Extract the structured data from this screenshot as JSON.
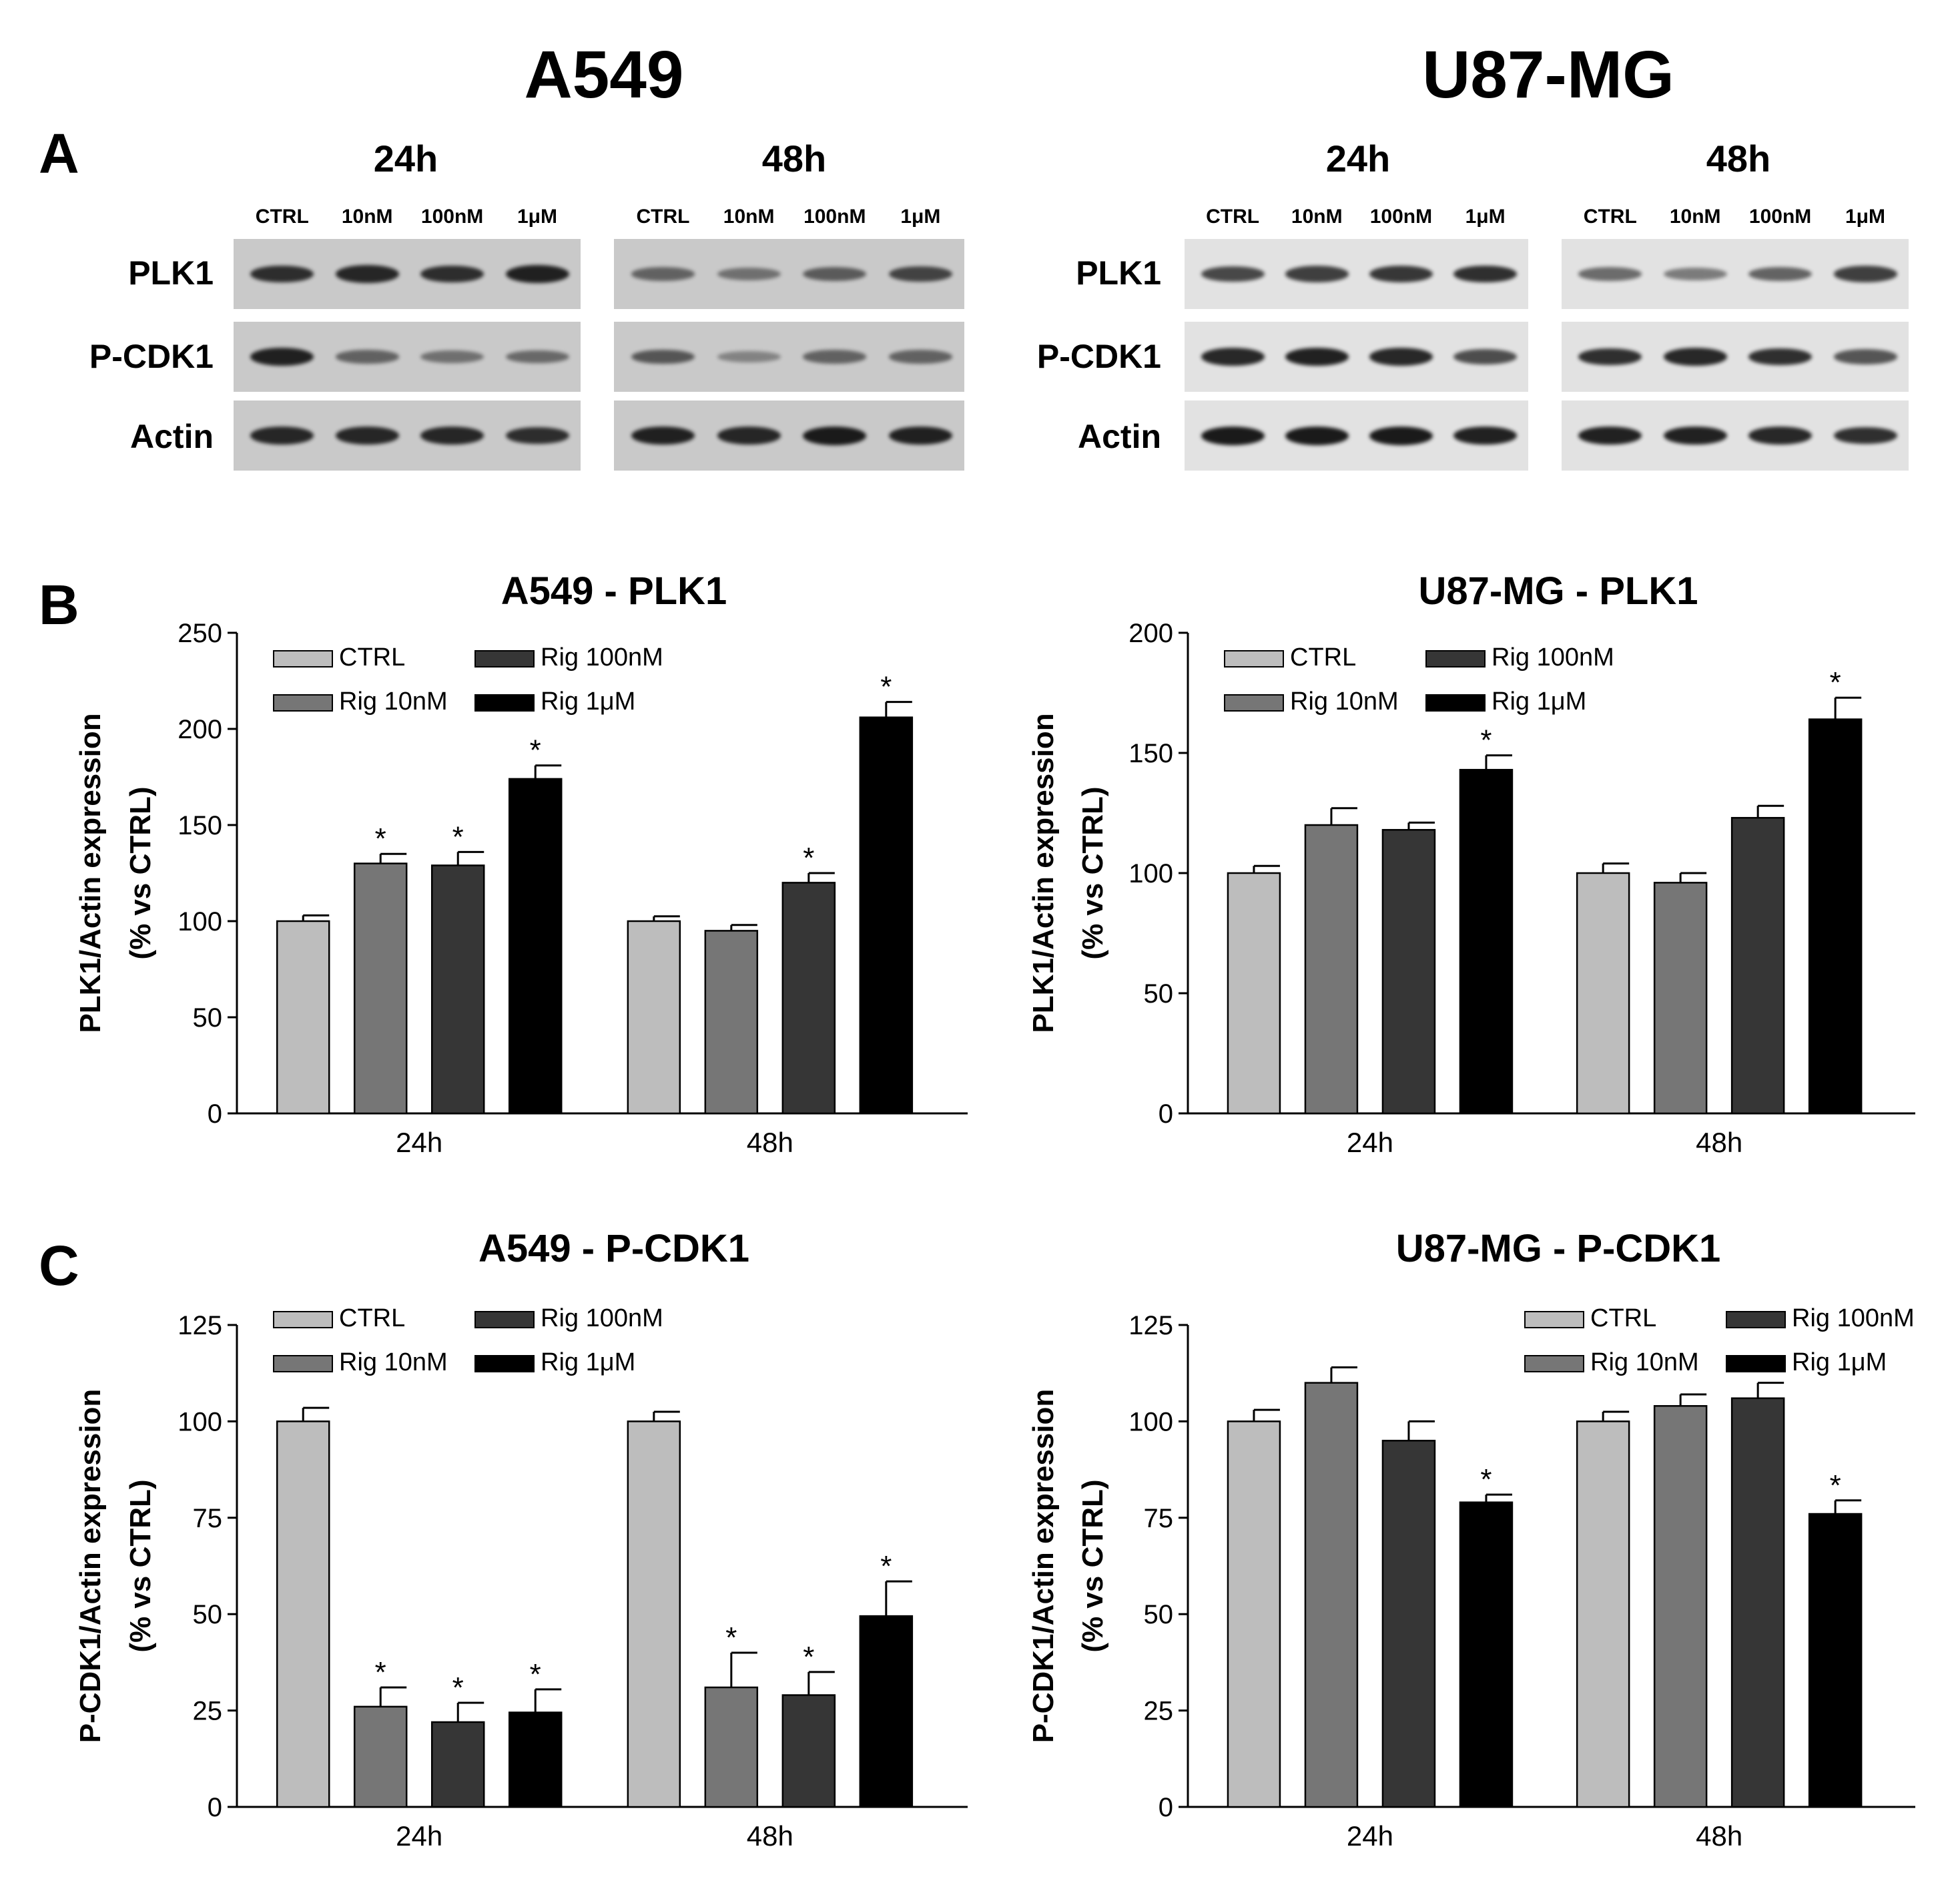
{
  "panel_letters": {
    "A": "A",
    "B": "B",
    "C": "C"
  },
  "cell_lines": [
    "A549",
    "U87-MG"
  ],
  "blots": {
    "time_labels": [
      "24h",
      "48h"
    ],
    "lane_labels": [
      "CTRL",
      "10nM",
      "100nM",
      "1μM"
    ],
    "row_labels": [
      "PLK1",
      "P-CDK1",
      "Actin"
    ]
  },
  "colors": {
    "CTRL": "#bdbdbd",
    "Rig 10nM": "#767676",
    "Rig 100nM": "#363636",
    "Rig 1μM": "#000000"
  },
  "chart_data": [
    {
      "type": "bar",
      "title": "A549 - PLK1",
      "ylabel_line1": "PLK1/Actin expression",
      "ylabel_line2": "(% vs CTRL)",
      "categories": [
        "24h",
        "48h"
      ],
      "ylim": [
        0,
        250
      ],
      "yticks": [
        "0",
        "50",
        "100",
        "150",
        "200",
        "250"
      ],
      "legend_position": "top-left",
      "series": [
        {
          "name": "CTRL",
          "values": [
            100,
            100
          ],
          "errors": [
            3,
            2.5
          ],
          "sig": [
            "",
            ""
          ]
        },
        {
          "name": "Rig 10nM",
          "values": [
            130,
            95
          ],
          "errors": [
            5,
            3
          ],
          "sig": [
            "*",
            ""
          ]
        },
        {
          "name": "Rig 100nM",
          "values": [
            129,
            120
          ],
          "errors": [
            7,
            5
          ],
          "sig": [
            "*",
            "*"
          ]
        },
        {
          "name": "Rig 1μM",
          "values": [
            174,
            206
          ],
          "errors": [
            7,
            8
          ],
          "sig": [
            "*",
            "*"
          ]
        }
      ]
    },
    {
      "type": "bar",
      "title": "U87-MG - PLK1",
      "ylabel_line1": "PLK1/Actin expression",
      "ylabel_line2": "(% vs CTRL)",
      "categories": [
        "24h",
        "48h"
      ],
      "ylim": [
        0,
        200
      ],
      "yticks": [
        "0",
        "50",
        "100",
        "150",
        "200"
      ],
      "legend_position": "top-left",
      "series": [
        {
          "name": "CTRL",
          "values": [
            100,
            100
          ],
          "errors": [
            3,
            4
          ],
          "sig": [
            "",
            ""
          ]
        },
        {
          "name": "Rig 10nM",
          "values": [
            120,
            96
          ],
          "errors": [
            7,
            4
          ],
          "sig": [
            "",
            ""
          ]
        },
        {
          "name": "Rig 100nM",
          "values": [
            118,
            123
          ],
          "errors": [
            3,
            5
          ],
          "sig": [
            "",
            ""
          ]
        },
        {
          "name": "Rig 1μM",
          "values": [
            143,
            164
          ],
          "errors": [
            6,
            9
          ],
          "sig": [
            "*",
            "*"
          ]
        }
      ]
    },
    {
      "type": "bar",
      "title": "A549 - P-CDK1",
      "ylabel_line1": "P-CDK1/Actin expression",
      "ylabel_line2": "(% vs CTRL)",
      "categories": [
        "24h",
        "48h"
      ],
      "ylim": [
        0,
        125
      ],
      "yticks": [
        "0",
        "25",
        "50",
        "75",
        "100",
        "125"
      ],
      "legend_position": "top-left",
      "series": [
        {
          "name": "CTRL",
          "values": [
            100,
            100
          ],
          "errors": [
            3.5,
            2.5
          ],
          "sig": [
            "",
            ""
          ]
        },
        {
          "name": "Rig 10nM",
          "values": [
            26,
            31
          ],
          "errors": [
            5,
            9
          ],
          "sig": [
            "*",
            "*"
          ]
        },
        {
          "name": "Rig 100nM",
          "values": [
            22,
            29
          ],
          "errors": [
            5,
            6
          ],
          "sig": [
            "*",
            "*"
          ]
        },
        {
          "name": "Rig 1μM",
          "values": [
            24.5,
            49.5
          ],
          "errors": [
            6,
            9
          ],
          "sig": [
            "*",
            "*"
          ]
        }
      ]
    },
    {
      "type": "bar",
      "title": "U87-MG - P-CDK1",
      "ylabel_line1": "P-CDK1/Actin expression",
      "ylabel_line2": "(% vs CTRL)",
      "categories": [
        "24h",
        "48h"
      ],
      "ylim": [
        0,
        125
      ],
      "yticks": [
        "0",
        "25",
        "50",
        "75",
        "100",
        "125"
      ],
      "legend_position": "top-right",
      "series": [
        {
          "name": "CTRL",
          "values": [
            100,
            100
          ],
          "errors": [
            3,
            2.5
          ],
          "sig": [
            "",
            ""
          ]
        },
        {
          "name": "Rig 10nM",
          "values": [
            110,
            104
          ],
          "errors": [
            4,
            3
          ],
          "sig": [
            "",
            ""
          ]
        },
        {
          "name": "Rig 100nM",
          "values": [
            95,
            106
          ],
          "errors": [
            5,
            4
          ],
          "sig": [
            "",
            ""
          ]
        },
        {
          "name": "Rig 1μM",
          "values": [
            79,
            76
          ],
          "errors": [
            2,
            3.5
          ],
          "sig": [
            "*",
            "*"
          ]
        }
      ]
    }
  ]
}
